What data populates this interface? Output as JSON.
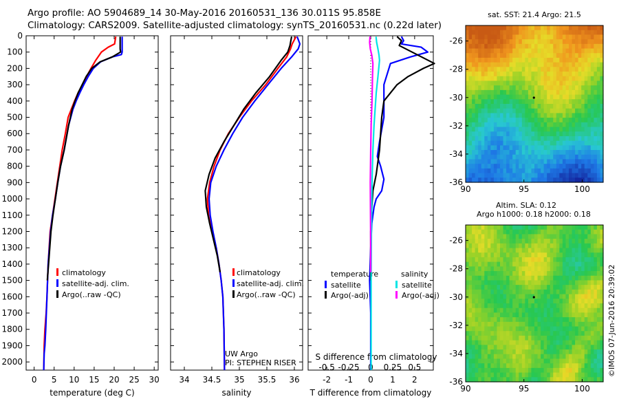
{
  "header": {
    "line1": "Argo profile: AO 5904689_14 30-May-2016 20160531_136 30.011S 95.858E",
    "line2": "Climatology: CARS2009. Satellite-adjusted climatology: synTS_20160531.nc (0.22d later)"
  },
  "footer": {
    "uw_argo": "UW Argo",
    "pi": "PI: STEPHEN RISER",
    "imos_stamp": "©IMOS 07-Jun-2016 20:39:02"
  },
  "colors": {
    "climatology": "#ff0000",
    "satellite": "#0000ff",
    "argo": "#000000",
    "sat_salinity": "#00e5e5",
    "argo_salinity": "#ff00ff"
  },
  "depth_axis": {
    "ylim": [
      0,
      2050
    ],
    "ticks": [
      0,
      100,
      200,
      300,
      400,
      500,
      600,
      700,
      800,
      900,
      1000,
      1100,
      1200,
      1300,
      1400,
      1500,
      1600,
      1700,
      1800,
      1900,
      2000
    ],
    "tick_labels": [
      "0",
      "100",
      "200",
      "300",
      "400",
      "500",
      "600",
      "700",
      "800",
      "900",
      "1000",
      "1100",
      "1200",
      "1300",
      "1400",
      "1500",
      "1600",
      "1700",
      "1800",
      "1900",
      "2000"
    ]
  },
  "chart_data": [
    {
      "id": "temperature",
      "type": "line",
      "xlabel": "temperature (deg C)",
      "xlim": [
        -2,
        31
      ],
      "xticks": [
        0,
        5,
        10,
        15,
        20,
        25,
        30
      ],
      "xtick_labels": [
        "0",
        "5",
        "10",
        "15",
        "20",
        "25",
        "30"
      ],
      "legend": [
        "climatology",
        "satellite-adj. clim.",
        "Argo(..raw -QC)"
      ],
      "series": [
        {
          "name": "climatology",
          "color": "#ff0000",
          "x": [
            20.4,
            20.1,
            18.5,
            16.8,
            15.4,
            14.2,
            13.1,
            12.1,
            11.0,
            10.1,
            9.3,
            8.5,
            7.8,
            7.0,
            6.4,
            5.8,
            5.2,
            4.6,
            4.0,
            3.5,
            3.2,
            3.0,
            2.7,
            2.5,
            2.4
          ],
          "y": [
            5,
            50,
            70,
            100,
            150,
            200,
            250,
            300,
            350,
            400,
            450,
            500,
            600,
            700,
            800,
            900,
            1000,
            1100,
            1200,
            1400,
            1600,
            1700,
            1800,
            1900,
            2050
          ]
        },
        {
          "name": "satellite-adj. clim.",
          "color": "#0000ff",
          "x": [
            22.0,
            22.0,
            21.8,
            19.5,
            16.6,
            14.8,
            13.5,
            12.4,
            11.4,
            10.5,
            9.7,
            8.6,
            7.5,
            6.6,
            5.9,
            5.3,
            4.6,
            4.1,
            3.5,
            3.2,
            2.9,
            2.7,
            2.5,
            2.4
          ],
          "y": [
            5,
            100,
            115,
            130,
            160,
            200,
            250,
            300,
            350,
            400,
            450,
            550,
            700,
            800,
            900,
            1000,
            1100,
            1200,
            1400,
            1600,
            1800,
            1900,
            1950,
            2050
          ]
        },
        {
          "name": "Argo(..raw -QC)",
          "color": "#000000",
          "x": [
            21.5,
            21.5,
            21.6,
            19.5,
            16.5,
            14.4,
            13.0,
            12.0,
            11.0,
            10.2,
            9.5,
            8.6,
            7.5,
            6.6,
            5.9,
            5.3,
            4.7,
            4.2,
            3.6,
            3.3
          ],
          "y": [
            5,
            80,
            100,
            130,
            160,
            200,
            250,
            300,
            350,
            400,
            450,
            550,
            700,
            800,
            900,
            1000,
            1100,
            1200,
            1400,
            1500
          ]
        }
      ]
    },
    {
      "id": "salinity",
      "type": "line",
      "xlabel": "salinity",
      "xlim": [
        33.75,
        36.15
      ],
      "xticks": [
        34,
        34.5,
        35,
        35.5,
        36
      ],
      "xtick_labels": [
        "34",
        "34.5",
        "35",
        "35.5",
        "36"
      ],
      "legend": [
        "climatology",
        "satellite-adj. clim.",
        "Argo(..raw -QC)"
      ],
      "series": [
        {
          "name": "climatology",
          "color": "#ff0000",
          "x": [
            36.03,
            35.96,
            35.93,
            35.86,
            35.7,
            35.48,
            35.22,
            35.0,
            34.8,
            34.65,
            34.54,
            34.46,
            34.42,
            34.44,
            34.5,
            34.58,
            34.63,
            34.67,
            34.7,
            34.72,
            34.73
          ],
          "y": [
            5,
            50,
            80,
            130,
            200,
            300,
            400,
            500,
            600,
            700,
            800,
            900,
            1000,
            1100,
            1200,
            1300,
            1400,
            1500,
            1600,
            1800,
            2050
          ]
        },
        {
          "name": "satellite-adj. clim.",
          "color": "#0000ff",
          "x": [
            36.05,
            36.1,
            36.07,
            35.95,
            35.76,
            35.52,
            35.28,
            35.06,
            34.88,
            34.72,
            34.58,
            34.48,
            34.45,
            34.47,
            34.52,
            34.58,
            34.63,
            34.67,
            34.7,
            34.72,
            34.73
          ],
          "y": [
            5,
            50,
            80,
            130,
            200,
            300,
            400,
            500,
            600,
            700,
            800,
            900,
            1000,
            1100,
            1200,
            1300,
            1400,
            1500,
            1600,
            1800,
            2050
          ]
        },
        {
          "name": "Argo(..raw -QC)",
          "color": "#000000",
          "x": [
            35.95,
            35.92,
            35.88,
            35.76,
            35.55,
            35.3,
            35.08,
            34.9,
            34.72,
            34.56,
            34.45,
            34.38,
            34.4,
            34.46,
            34.53,
            34.6,
            34.65
          ],
          "y": [
            5,
            60,
            100,
            150,
            250,
            350,
            450,
            550,
            650,
            750,
            850,
            950,
            1050,
            1150,
            1250,
            1350,
            1450
          ]
        }
      ]
    },
    {
      "id": "differences",
      "type": "line",
      "xlabel": "T difference from climatology",
      "xlim": [
        -2.85,
        2.85
      ],
      "xticks": [
        -2,
        -1,
        0,
        1,
        2
      ],
      "xtick_labels": [
        "-2",
        "-1",
        "0",
        "1",
        "2"
      ],
      "top_label": "S difference from climatology",
      "top_ticks": [
        -0.5,
        -0.25,
        0,
        0.25,
        0.5
      ],
      "top_tick_labels": [
        "-0.5",
        "-0.25",
        "0",
        "0.25",
        "0.5"
      ],
      "legend_headers": [
        "temperature",
        "salinity"
      ],
      "legend": [
        "satellite",
        "Argo(-adj)",
        "satellite",
        "Argo(-adj)"
      ],
      "series": [
        {
          "name": "temperature satellite",
          "color": "#0000ff",
          "x": [
            1.4,
            1.5,
            1.4,
            2.3,
            2.6,
            1.8,
            0.9,
            0.6,
            0.6,
            0.4,
            0.3,
            0.45,
            0.6,
            0.5,
            0.25,
            0.15,
            0.05,
            0.0,
            -0.05,
            0.0,
            0.0
          ],
          "y": [
            5,
            30,
            50,
            70,
            100,
            130,
            170,
            300,
            500,
            650,
            740,
            800,
            880,
            950,
            1000,
            1050,
            1150,
            1300,
            1500,
            1700,
            2050
          ]
        },
        {
          "name": "temperature Argo(-adj)",
          "color": "#000000",
          "x": [
            1.2,
            1.4,
            1.3,
            2.9,
            2.4,
            1.7,
            1.2,
            0.6,
            0.5,
            0.4,
            0.25,
            0.1,
            0.05,
            0.0,
            0.0
          ],
          "y": [
            5,
            30,
            60,
            170,
            200,
            250,
            300,
            400,
            500,
            700,
            850,
            950,
            1050,
            1200,
            1500
          ]
        },
        {
          "name": "salinity satellite",
          "color": "#00e5e5",
          "x": [
            0.24,
            0.27,
            0.33,
            0.38,
            0.4,
            0.33,
            0.25,
            0.2,
            0.15,
            0.1,
            0.07,
            0.05,
            0.03,
            0.02,
            0.02
          ],
          "y": [
            5,
            40,
            80,
            120,
            150,
            250,
            350,
            450,
            550,
            700,
            850,
            1000,
            1200,
            1500,
            2050
          ]
        },
        {
          "name": "salinity Argo(-adj)",
          "color": "#ff00ff",
          "x": [
            -0.03,
            -0.05,
            -0.02,
            0.05,
            0.1,
            0.08,
            0.06,
            0.02,
            0.0,
            -0.02,
            -0.01,
            0.0,
            0.0
          ],
          "y": [
            5,
            40,
            80,
            120,
            170,
            250,
            400,
            550,
            700,
            900,
            1100,
            1300,
            1450
          ]
        }
      ]
    },
    {
      "id": "sst_map",
      "type": "heatmap",
      "title": "sat. SST: 21.4 Argo: 21.5",
      "xlim": [
        90,
        101.8
      ],
      "ylim": [
        -36,
        -24.9
      ],
      "xticks": [
        90,
        95,
        100
      ],
      "xtick_labels": [
        "90",
        "95",
        "100"
      ],
      "yticks": [
        -26,
        -28,
        -30,
        -32,
        -34,
        -36
      ],
      "ytick_labels": [
        "-26",
        "-28",
        "-30",
        "-32",
        "-34",
        "-36"
      ]
    },
    {
      "id": "sla_map",
      "type": "heatmap",
      "title_line1": "Altim. SLA: 0.12",
      "title_line2": "Argo h1000: 0.18 h2000: 0.18",
      "xlim": [
        90,
        101.8
      ],
      "ylim": [
        -36,
        -24.9
      ],
      "xticks": [
        90,
        95,
        100
      ],
      "xtick_labels": [
        "90",
        "95",
        "100"
      ],
      "yticks": [
        -26,
        -28,
        -30,
        -32,
        -34,
        -36
      ],
      "ytick_labels": [
        "-26",
        "-28",
        "-30",
        "-32",
        "-34",
        "-36"
      ]
    }
  ]
}
